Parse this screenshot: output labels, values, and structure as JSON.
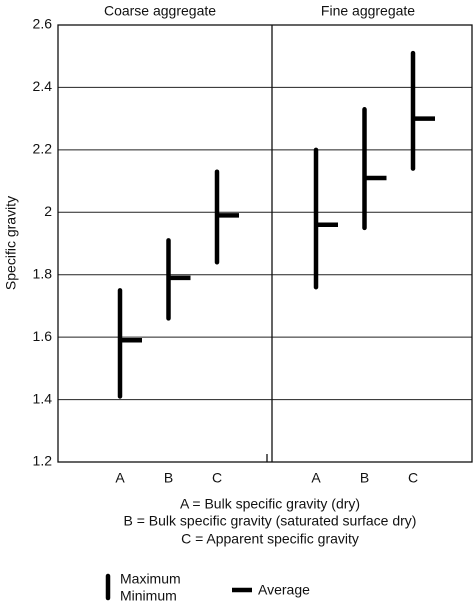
{
  "chart_data": {
    "type": "range",
    "ylabel": "Specific gravity",
    "ylim": [
      1.2,
      2.6
    ],
    "yticks": [
      1.2,
      1.4,
      1.6,
      1.8,
      2,
      2.2,
      2.4,
      2.6
    ],
    "grid": true,
    "color": "#000000",
    "panels": [
      {
        "title": "Coarse aggregate",
        "categories": [
          "A",
          "B",
          "C"
        ],
        "max": [
          1.75,
          1.91,
          2.13
        ],
        "min": [
          1.41,
          1.66,
          1.84
        ],
        "average": [
          1.59,
          1.79,
          1.99
        ]
      },
      {
        "title": "Fine aggregate",
        "categories": [
          "A",
          "B",
          "C"
        ],
        "max": [
          2.2,
          2.33,
          2.51
        ],
        "min": [
          1.76,
          1.95,
          2.14
        ],
        "average": [
          1.96,
          2.11,
          2.3
        ]
      }
    ],
    "notes": [
      "A = Bulk specific gravity (dry)",
      "B = Bulk specific gravity (saturated surface dry)",
      "C = Apparent specific gravity"
    ],
    "legend": {
      "range": [
        "Maximum",
        "Minimum"
      ],
      "average": "Average"
    }
  }
}
